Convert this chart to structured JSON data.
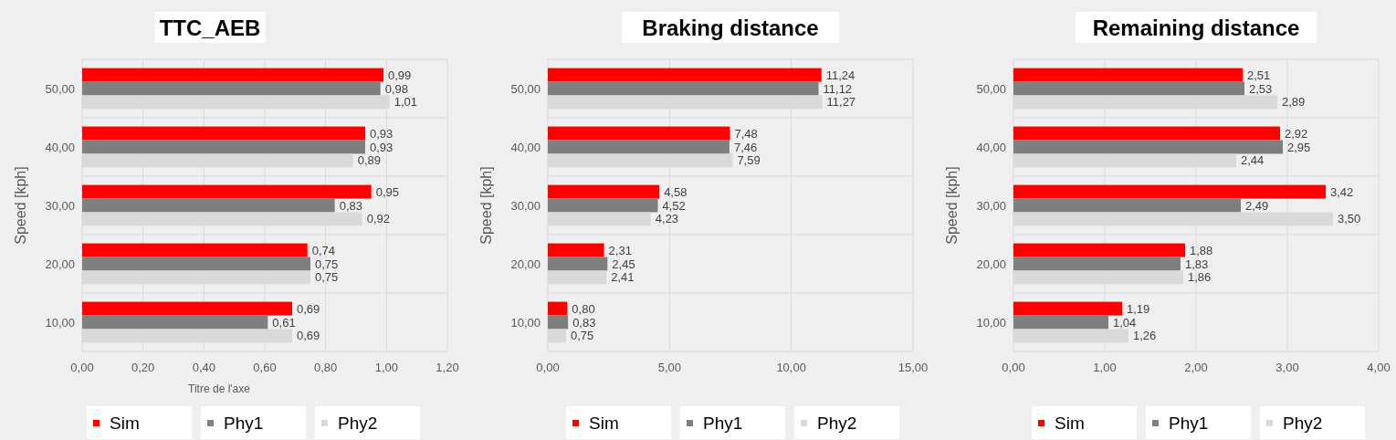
{
  "chart_data": [
    {
      "type": "bar",
      "orientation": "horizontal",
      "title": "TTC_AEB",
      "xlabel": "Titre de l'axe",
      "ylabel": "Speed [kph]",
      "categories": [
        "50,00",
        "40,00",
        "30,00",
        "20,00",
        "10,00"
      ],
      "xlim": [
        0,
        1.2
      ],
      "xticks": [
        {
          "value": 0,
          "label": "0,00"
        },
        {
          "value": 0.2,
          "label": "0,20"
        },
        {
          "value": 0.4,
          "label": "0,40"
        },
        {
          "value": 0.6,
          "label": "0,60"
        },
        {
          "value": 0.8,
          "label": "0,80"
        },
        {
          "value": 1,
          "label": "1,00"
        },
        {
          "value": 1.2,
          "label": "1,20"
        }
      ],
      "grid": true,
      "legend": "bottom",
      "series": [
        {
          "name": "Sim",
          "color": "#ff0000",
          "values": [
            0.99,
            0.93,
            0.95,
            0.74,
            0.69
          ],
          "value_labels": [
            "0,99",
            "0,93",
            "0,95",
            "0,74",
            "0,69"
          ]
        },
        {
          "name": "Phy1",
          "color": "#7f7f7f",
          "values": [
            0.98,
            0.93,
            0.83,
            0.75,
            0.61
          ],
          "value_labels": [
            "0,98",
            "0,93",
            "0,83",
            "0,75",
            "0,61"
          ]
        },
        {
          "name": "Phy2",
          "color": "#d9d9d9",
          "values": [
            1.01,
            0.89,
            0.92,
            0.75,
            0.69
          ],
          "value_labels": [
            "1,01",
            "0,89",
            "0,92",
            "0,75",
            "0,69"
          ]
        }
      ]
    },
    {
      "type": "bar",
      "orientation": "horizontal",
      "title": "Braking distance",
      "ylabel": "Speed [kph]",
      "categories": [
        "50,00",
        "40,00",
        "30,00",
        "20,00",
        "10,00"
      ],
      "xlim": [
        0,
        15
      ],
      "xticks": [
        {
          "value": 0,
          "label": "0,00"
        },
        {
          "value": 5,
          "label": "5,00"
        },
        {
          "value": 10,
          "label": "10,00"
        },
        {
          "value": 15,
          "label": "15,00"
        }
      ],
      "grid": true,
      "legend": "bottom",
      "series": [
        {
          "name": "Sim",
          "color": "#ff0000",
          "values": [
            11.24,
            7.48,
            4.58,
            2.31,
            0.8
          ],
          "value_labels": [
            "11,24",
            "7,48",
            "4,58",
            "2,31",
            "0,80"
          ]
        },
        {
          "name": "Phy1",
          "color": "#7f7f7f",
          "values": [
            11.12,
            7.46,
            4.52,
            2.45,
            0.83
          ],
          "value_labels": [
            "11,12",
            "7,46",
            "4,52",
            "2,45",
            "0,83"
          ]
        },
        {
          "name": "Phy2",
          "color": "#d9d9d9",
          "values": [
            11.27,
            7.59,
            4.23,
            2.41,
            0.75
          ],
          "value_labels": [
            "11,27",
            "7,59",
            "4,23",
            "2,41",
            "0,75"
          ]
        }
      ]
    },
    {
      "type": "bar",
      "orientation": "horizontal",
      "title": "Remaining distance",
      "ylabel": "Speed [kph]",
      "categories": [
        "50,00",
        "40,00",
        "30,00",
        "20,00",
        "10,00"
      ],
      "xlim": [
        0,
        4
      ],
      "xticks": [
        {
          "value": 0,
          "label": "0,00"
        },
        {
          "value": 1,
          "label": "1,00"
        },
        {
          "value": 2,
          "label": "2,00"
        },
        {
          "value": 3,
          "label": "3,00"
        },
        {
          "value": 4,
          "label": "4,00"
        }
      ],
      "grid": true,
      "legend": "bottom",
      "series": [
        {
          "name": "Sim",
          "color": "#ff0000",
          "values": [
            2.51,
            2.92,
            3.42,
            1.88,
            1.19
          ],
          "value_labels": [
            "2,51",
            "2,92",
            "3,42",
            "1,88",
            "1,19"
          ]
        },
        {
          "name": "Phy1",
          "color": "#7f7f7f",
          "values": [
            2.53,
            2.95,
            2.49,
            1.83,
            1.04
          ],
          "value_labels": [
            "2,53",
            "2,95",
            "2,49",
            "1,83",
            "1,04"
          ]
        },
        {
          "name": "Phy2",
          "color": "#d9d9d9",
          "values": [
            2.89,
            2.44,
            3.5,
            1.86,
            1.26
          ],
          "value_labels": [
            "2,89",
            "2,44",
            "3,50",
            "1,86",
            "1,26"
          ]
        }
      ]
    }
  ]
}
